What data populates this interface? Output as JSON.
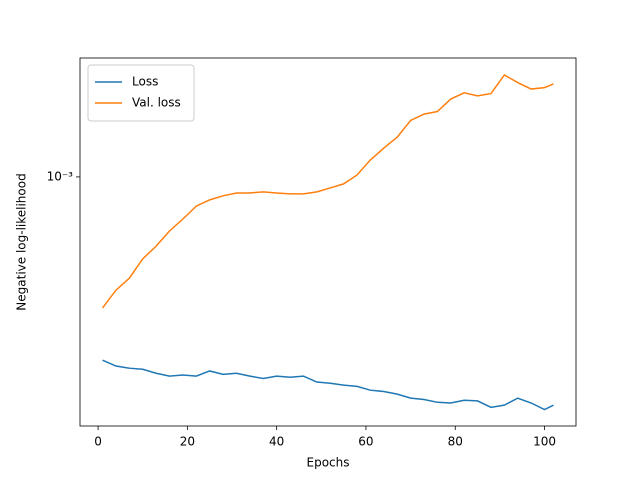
{
  "chart_data": {
    "type": "line",
    "xlabel": "Epochs",
    "ylabel": "Negative log-likelihood",
    "x": [
      1,
      4,
      7,
      10,
      13,
      16,
      19,
      22,
      25,
      28,
      31,
      34,
      37,
      40,
      43,
      46,
      49,
      52,
      55,
      58,
      61,
      64,
      67,
      70,
      73,
      76,
      79,
      82,
      85,
      88,
      91,
      94,
      97,
      100,
      102
    ],
    "series": [
      {
        "name": "Loss",
        "color": "#1f77b4",
        "values": [
          0.000268,
          0.000257,
          0.000253,
          0.000251,
          0.000244,
          0.000239,
          0.000241,
          0.000239,
          0.000248,
          0.000242,
          0.000244,
          0.000239,
          0.000235,
          0.000239,
          0.000237,
          0.000239,
          0.000229,
          0.000227,
          0.000224,
          0.000222,
          0.000216,
          0.000214,
          0.00021,
          0.000204,
          0.000202,
          0.000198,
          0.000197,
          0.000201,
          0.0002,
          0.000191,
          0.000194,
          0.000204,
          0.000197,
          0.000188,
          0.000194
        ]
      },
      {
        "name": "Val. loss",
        "color": "#ff7f0e",
        "values": [
          0.00039,
          0.000443,
          0.000483,
          0.000555,
          0.000608,
          0.000678,
          0.000739,
          0.000811,
          0.000848,
          0.000873,
          0.000891,
          0.000891,
          0.000898,
          0.000891,
          0.000885,
          0.000885,
          0.000898,
          0.000924,
          0.000951,
          0.001014,
          0.00113,
          0.00123,
          0.00133,
          0.0015,
          0.00157,
          0.0016,
          0.00175,
          0.00183,
          0.00179,
          0.00182,
          0.00208,
          0.00197,
          0.00188,
          0.0019,
          0.00195
        ]
      }
    ],
    "xlim": [
      -4.05,
      107.05
    ],
    "xticks": [
      0,
      20,
      40,
      60,
      80,
      100
    ],
    "ylim": [
      0.000167,
      0.00235
    ],
    "yticks": [
      {
        "value": 0.001,
        "label": "10⁻³"
      }
    ],
    "yscale": "log",
    "legend": "upper left"
  }
}
